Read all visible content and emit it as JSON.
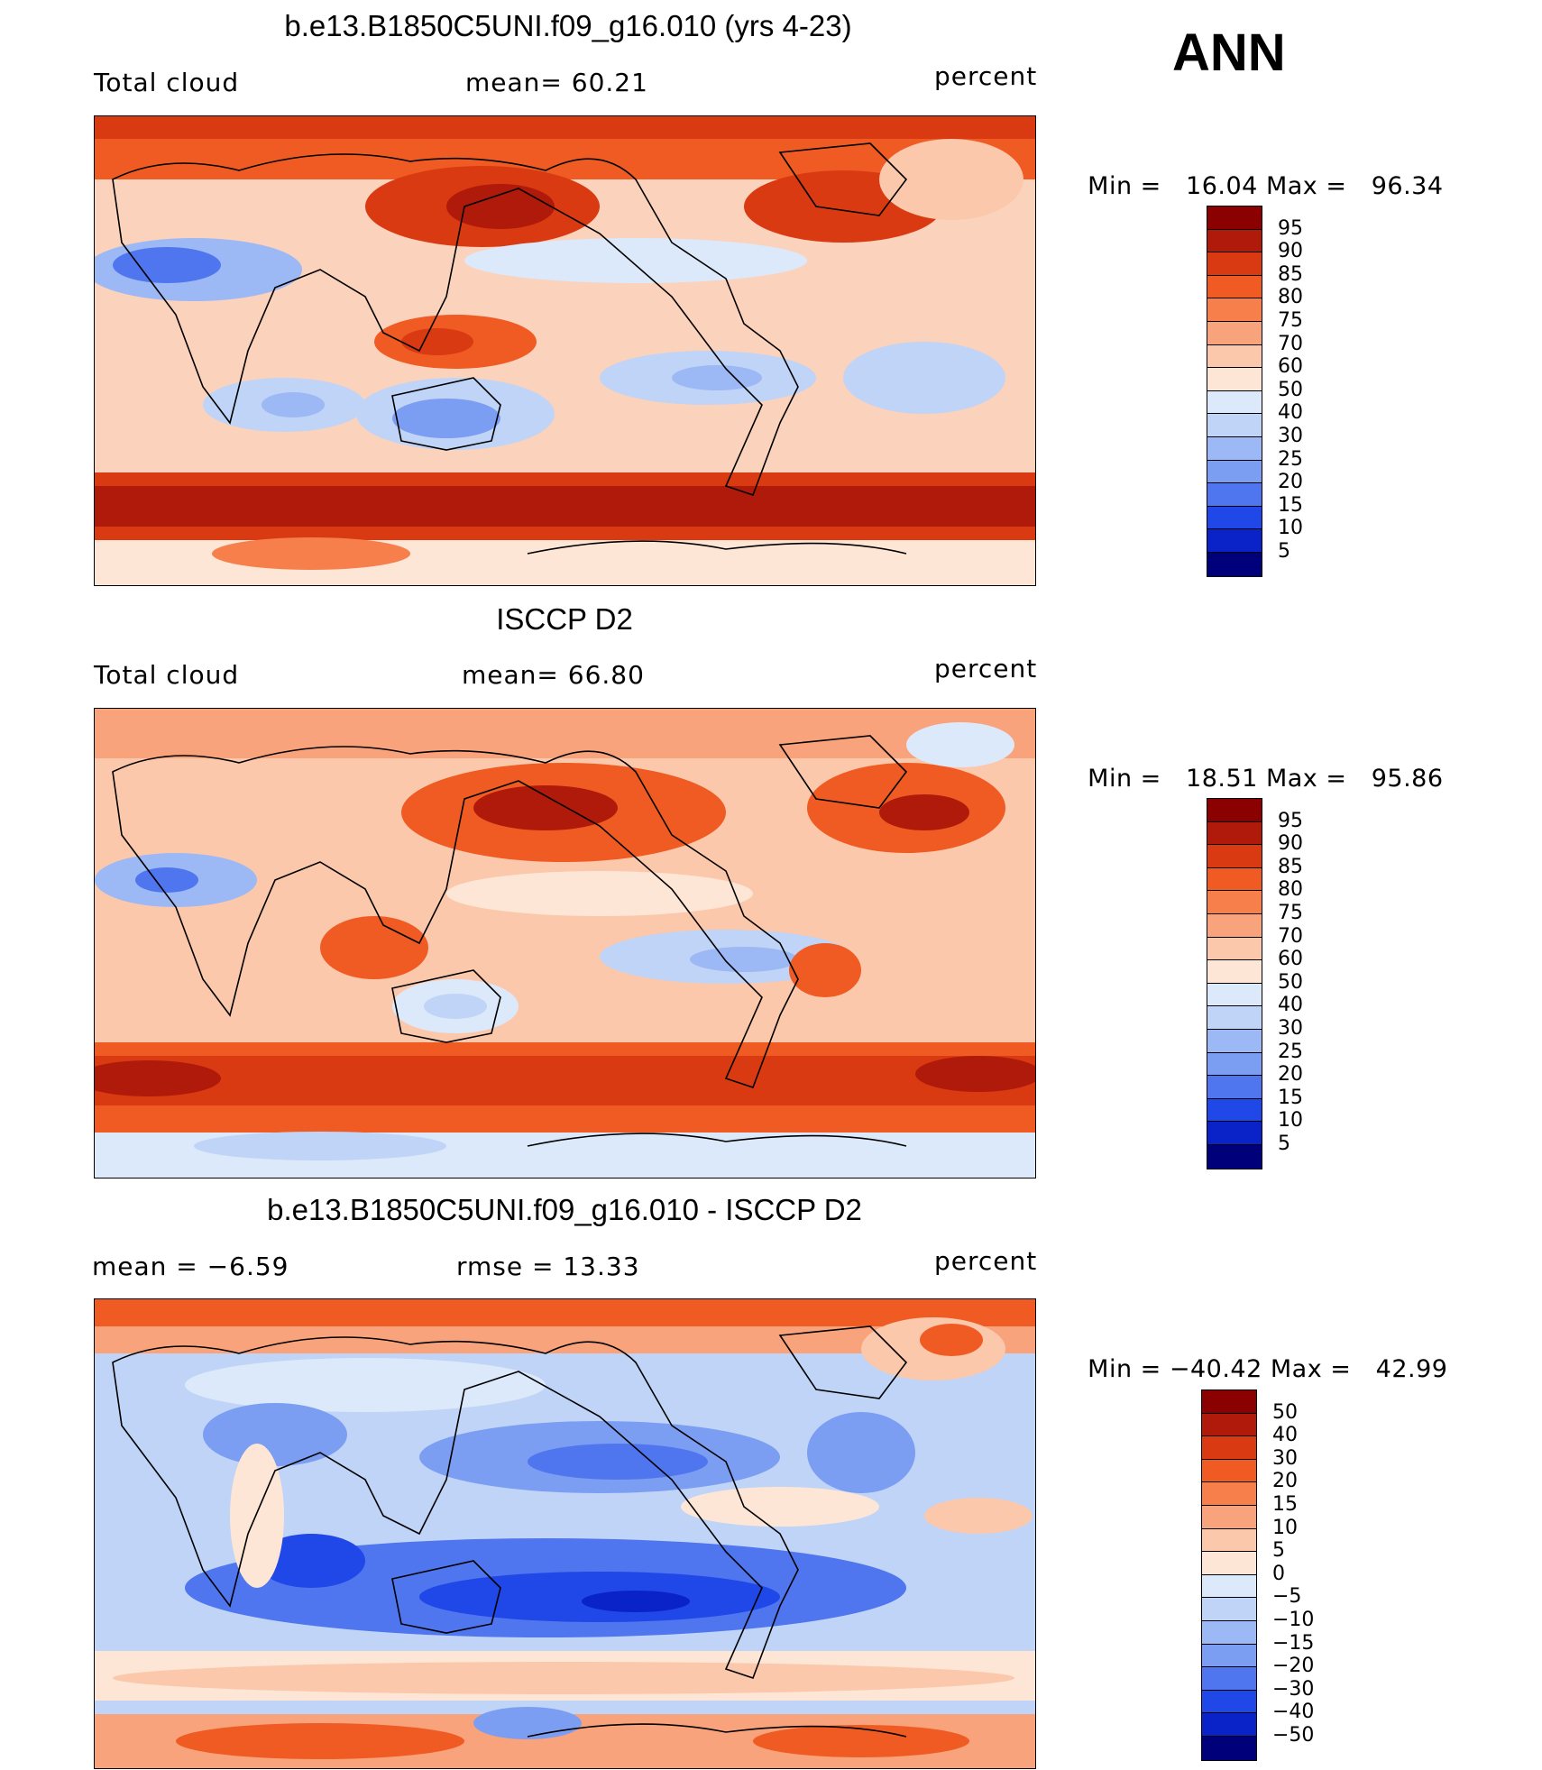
{
  "season": "ANN",
  "panels": [
    {
      "title": "b.e13.B1850C5UNI.f09_g16.010 (yrs 4-23)",
      "left_label": "Total cloud",
      "center_label": "mean=   60.21",
      "units": "percent",
      "min_label": "Min =   16.04",
      "max_label": "Max =   96.34",
      "colorbar": {
        "labels": [
          "95",
          "90",
          "85",
          "80",
          "75",
          "70",
          "60",
          "50",
          "40",
          "30",
          "25",
          "20",
          "15",
          "10",
          "5"
        ],
        "colors": [
          "#8b0000",
          "#b01a0a",
          "#d93a12",
          "#ef5b22",
          "#f67f4c",
          "#f9a37c",
          "#fbc8ac",
          "#fde6d6",
          "#dce9fa",
          "#bfd4f7",
          "#9cb8f5",
          "#7b9df2",
          "#4f76ee",
          "#2047e8",
          "#0a23c8",
          "#00007a"
        ]
      }
    },
    {
      "title": "ISCCP D2",
      "left_label": "Total cloud",
      "center_label": "mean=   66.80",
      "units": "percent",
      "min_label": "Min =   18.51",
      "max_label": "Max =   95.86",
      "colorbar": {
        "labels": [
          "95",
          "90",
          "85",
          "80",
          "75",
          "70",
          "60",
          "50",
          "40",
          "30",
          "25",
          "20",
          "15",
          "10",
          "5"
        ],
        "colors": [
          "#8b0000",
          "#b01a0a",
          "#d93a12",
          "#ef5b22",
          "#f67f4c",
          "#f9a37c",
          "#fbc8ac",
          "#fde6d6",
          "#dce9fa",
          "#bfd4f7",
          "#9cb8f5",
          "#7b9df2",
          "#4f76ee",
          "#2047e8",
          "#0a23c8",
          "#00007a"
        ]
      }
    },
    {
      "title": "b.e13.B1850C5UNI.f09_g16.010 - ISCCP D2",
      "left_label": "mean =   −6.59",
      "center_label": "rmse =   13.33",
      "units": "percent",
      "min_label": "Min = −40.42",
      "max_label": "Max =   42.99",
      "colorbar": {
        "labels": [
          "50",
          "40",
          "30",
          "20",
          "15",
          "10",
          "5",
          "0",
          "−5",
          "−10",
          "−15",
          "−20",
          "−30",
          "−40",
          "−50"
        ],
        "colors": [
          "#8b0000",
          "#b01a0a",
          "#d93a12",
          "#ef5b22",
          "#f67f4c",
          "#f9a37c",
          "#fbc8ac",
          "#fde6d6",
          "#dce9fa",
          "#bfd4f7",
          "#9cb8f5",
          "#7b9df2",
          "#4f76ee",
          "#2047e8",
          "#0a23c8",
          "#00007a"
        ]
      }
    }
  ]
}
